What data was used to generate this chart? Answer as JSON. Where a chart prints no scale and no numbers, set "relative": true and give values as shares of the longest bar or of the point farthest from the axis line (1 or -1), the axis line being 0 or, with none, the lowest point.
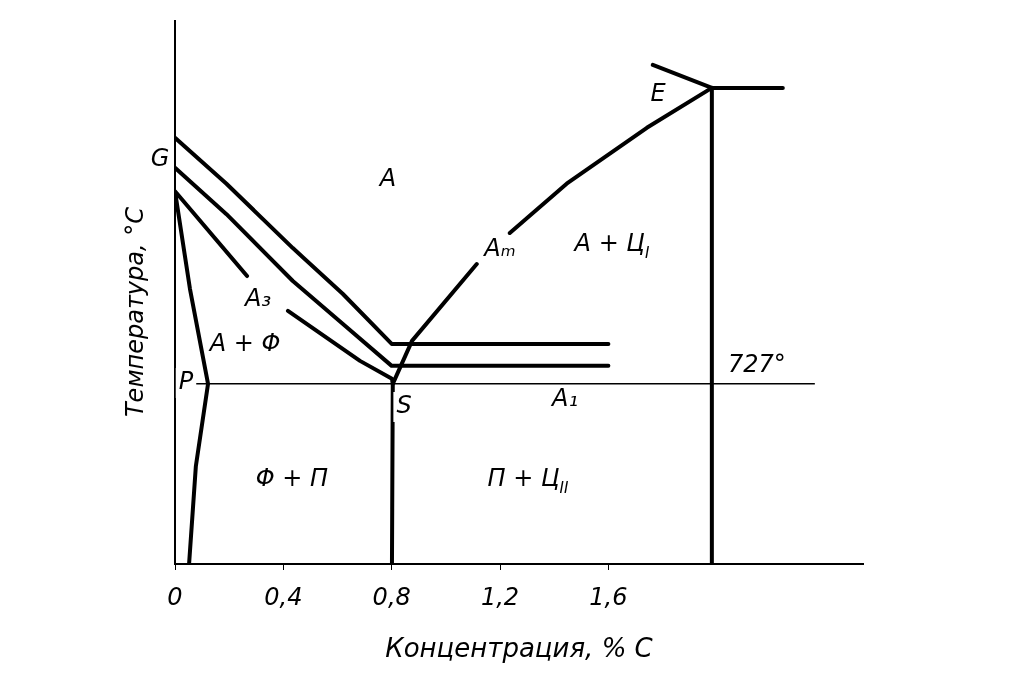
{
  "chart_data": {
    "type": "line",
    "relative": true,
    "xlabel": "Концентрация, % С",
    "ylabel": "Температура, °С",
    "xlim": [
      0,
      2.54
    ],
    "xticks": [
      0,
      {
        "value": 0.4,
        "label": "0,4"
      },
      {
        "value": 0.8,
        "label": "0,8"
      },
      {
        "value": 1.2,
        "label": "1,2"
      },
      {
        "value": 1.6,
        "label": "1,6"
      }
    ],
    "grid": false,
    "legend": false,
    "marker": "none",
    "line_style": "solid",
    "series": [
      {
        "color": "#000000",
        "x": [
          0,
          0.19,
          0.435,
          0.62,
          0.8,
          1.6
        ],
        "values": [
          0.854,
          0.762,
          0.633,
          0.541,
          0.441,
          0.441
        ]
      },
      {
        "color": "#000000",
        "x": [
          0,
          0.19,
          0.435,
          0.62,
          0.8,
          1.6
        ],
        "values": [
          0.794,
          0.701,
          0.567,
          0.481,
          0.397,
          0.397
        ]
      },
      {
        "color": "#000000",
        "x": [
          0.052,
          0.077,
          0.122,
          0.055,
          0,
          0.266,
          0.27,
          0.417,
          0.683,
          0.801,
          0.804,
          0.801
        ],
        "values": [
          0,
          0.196,
          0.361,
          0.552,
          0.747,
          0.577,
          null,
          0.507,
          0.407,
          0.371,
          0.361,
          0
        ]
      },
      {
        "color": "#000000",
        "x": [
          0.804,
          0.875,
          1.114,
          1.12,
          1.236,
          1.446,
          1.742,
          1.982
        ],
        "values": [
          0.361,
          0.447,
          0.601,
          null,
          0.663,
          0.762,
          0.874,
          0.954
        ]
      },
      {
        "color": "#000000",
        "x": [
          1.764,
          1.982,
          2.244
        ],
        "values": [
          1,
          0.954,
          0.954
        ]
      },
      {
        "color": "#000000",
        "x": [
          1.982,
          1.982
        ],
        "values": [
          0.954,
          0
        ]
      }
    ],
    "ref_lines": [
      {
        "axis": "y",
        "value": 0.361,
        "color": "#000000"
      }
    ],
    "annotations": [
      "G",
      "A",
      "A₃",
      "A + Φ",
      "P",
      "S",
      "Φ + П",
      "П + Ц$_{II}$",
      "A₁",
      "Aₘ",
      "A + Ц$_{I}$",
      "E",
      {
        "text": "727°",
        "x": 2.148,
        "y": 0.361
      }
    ]
  }
}
